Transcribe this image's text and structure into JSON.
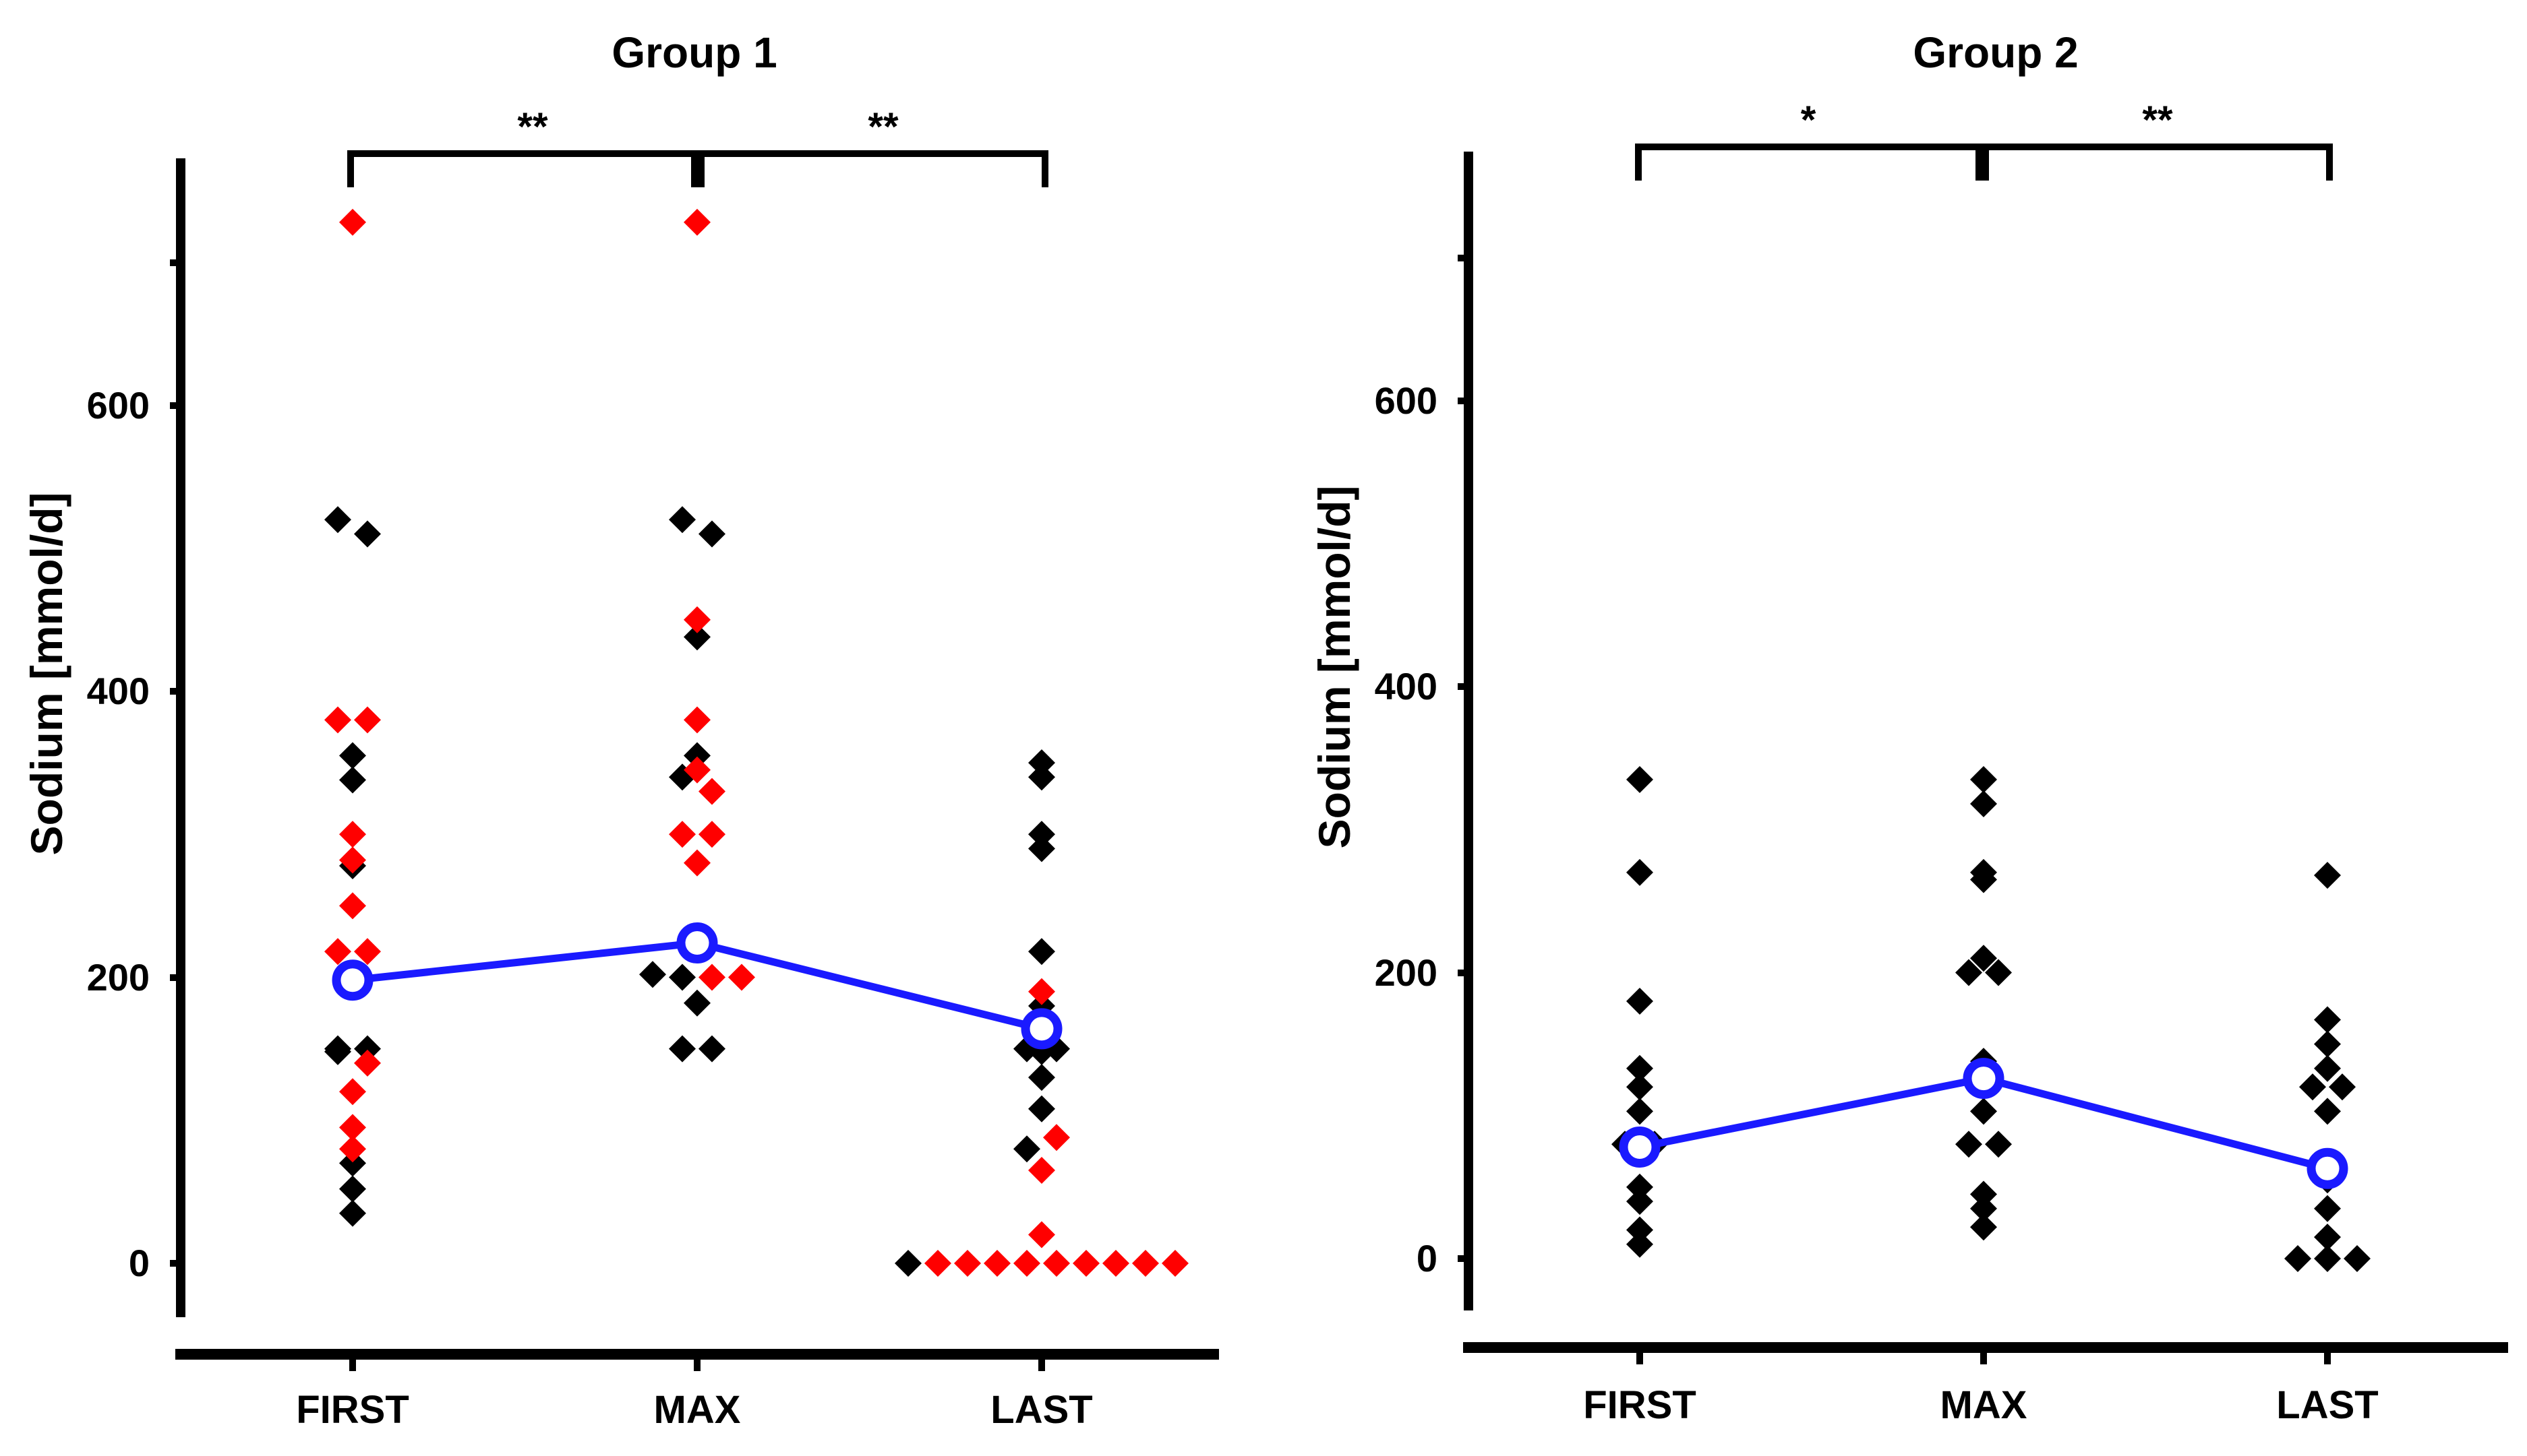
{
  "chart_data": [
    {
      "type": "scatter",
      "title": "Group 1",
      "ylabel": "Sodium [mmol/d]",
      "xlabel": "",
      "categories": [
        "FIRST",
        "MAX",
        "LAST"
      ],
      "ylim": [
        -70,
        800
      ],
      "yticks": [
        0,
        200,
        400,
        600
      ],
      "colors": {
        "black_series": "#000000",
        "red_series": "#ff0000",
        "mean": "#1a1aff"
      },
      "series": [
        {
          "color_key": "black_series",
          "points": [
            {
              "x": "FIRST",
              "y": 520
            },
            {
              "x": "FIRST",
              "y": 510
            },
            {
              "x": "FIRST",
              "y": 355
            },
            {
              "x": "FIRST",
              "y": 338
            },
            {
              "x": "FIRST",
              "y": 278
            },
            {
              "x": "FIRST",
              "y": 150
            },
            {
              "x": "FIRST",
              "y": 148
            },
            {
              "x": "FIRST",
              "y": 150
            },
            {
              "x": "FIRST",
              "y": 70
            },
            {
              "x": "FIRST",
              "y": 52
            },
            {
              "x": "FIRST",
              "y": 35
            },
            {
              "x": "MAX",
              "y": 520
            },
            {
              "x": "MAX",
              "y": 510
            },
            {
              "x": "MAX",
              "y": 438
            },
            {
              "x": "MAX",
              "y": 355
            },
            {
              "x": "MAX",
              "y": 340
            },
            {
              "x": "MAX",
              "y": 202
            },
            {
              "x": "MAX",
              "y": 200
            },
            {
              "x": "MAX",
              "y": 182
            },
            {
              "x": "MAX",
              "y": 150
            },
            {
              "x": "MAX",
              "y": 150
            },
            {
              "x": "LAST",
              "y": 350
            },
            {
              "x": "LAST",
              "y": 340
            },
            {
              "x": "LAST",
              "y": 300
            },
            {
              "x": "LAST",
              "y": 290
            },
            {
              "x": "LAST",
              "y": 218
            },
            {
              "x": "LAST",
              "y": 180
            },
            {
              "x": "LAST",
              "y": 150
            },
            {
              "x": "LAST",
              "y": 148
            },
            {
              "x": "LAST",
              "y": 150
            },
            {
              "x": "LAST",
              "y": 130
            },
            {
              "x": "LAST",
              "y": 108
            },
            {
              "x": "LAST",
              "y": 80
            },
            {
              "x": "LAST",
              "y": 0
            }
          ]
        },
        {
          "color_key": "red_series",
          "points": [
            {
              "x": "FIRST",
              "y": 728
            },
            {
              "x": "FIRST",
              "y": 380
            },
            {
              "x": "FIRST",
              "y": 380
            },
            {
              "x": "FIRST",
              "y": 300
            },
            {
              "x": "FIRST",
              "y": 282
            },
            {
              "x": "FIRST",
              "y": 250
            },
            {
              "x": "FIRST",
              "y": 218
            },
            {
              "x": "FIRST",
              "y": 218
            },
            {
              "x": "FIRST",
              "y": 200
            },
            {
              "x": "FIRST",
              "y": 140
            },
            {
              "x": "FIRST",
              "y": 120
            },
            {
              "x": "FIRST",
              "y": 95
            },
            {
              "x": "FIRST",
              "y": 80
            },
            {
              "x": "MAX",
              "y": 728
            },
            {
              "x": "MAX",
              "y": 450
            },
            {
              "x": "MAX",
              "y": 380
            },
            {
              "x": "MAX",
              "y": 345
            },
            {
              "x": "MAX",
              "y": 330
            },
            {
              "x": "MAX",
              "y": 300
            },
            {
              "x": "MAX",
              "y": 300
            },
            {
              "x": "MAX",
              "y": 280
            },
            {
              "x": "MAX",
              "y": 200
            },
            {
              "x": "MAX",
              "y": 200
            },
            {
              "x": "LAST",
              "y": 190
            },
            {
              "x": "LAST",
              "y": 88
            },
            {
              "x": "LAST",
              "y": 65
            },
            {
              "x": "LAST",
              "y": 20
            },
            {
              "x": "LAST",
              "y": 0
            },
            {
              "x": "LAST",
              "y": 0
            },
            {
              "x": "LAST",
              "y": 0
            },
            {
              "x": "LAST",
              "y": 0
            },
            {
              "x": "LAST",
              "y": 0
            },
            {
              "x": "LAST",
              "y": 0
            },
            {
              "x": "LAST",
              "y": 0
            },
            {
              "x": "LAST",
              "y": 0
            },
            {
              "x": "LAST",
              "y": 0
            }
          ]
        }
      ],
      "mean_line": {
        "color_key": "mean",
        "categories": [
          "FIRST",
          "MAX",
          "LAST"
        ],
        "values": [
          198,
          224,
          164
        ]
      },
      "annotations": [
        {
          "from": "FIRST",
          "to": "MAX",
          "text": "**"
        },
        {
          "from": "MAX",
          "to": "LAST",
          "text": "**"
        }
      ]
    },
    {
      "type": "scatter",
      "title": "Group 2",
      "ylabel": "Sodium [mmol/d]",
      "xlabel": "",
      "categories": [
        "FIRST",
        "MAX",
        "LAST"
      ],
      "ylim": [
        -70,
        800
      ],
      "yticks": [
        0,
        200,
        400,
        600
      ],
      "colors": {
        "black_series": "#000000",
        "mean": "#1a1aff"
      },
      "series": [
        {
          "color_key": "black_series",
          "points": [
            {
              "x": "FIRST",
              "y": 335
            },
            {
              "x": "FIRST",
              "y": 270
            },
            {
              "x": "FIRST",
              "y": 180
            },
            {
              "x": "FIRST",
              "y": 133
            },
            {
              "x": "FIRST",
              "y": 120
            },
            {
              "x": "FIRST",
              "y": 103
            },
            {
              "x": "FIRST",
              "y": 80
            },
            {
              "x": "FIRST",
              "y": 80
            },
            {
              "x": "FIRST",
              "y": 50
            },
            {
              "x": "FIRST",
              "y": 40
            },
            {
              "x": "FIRST",
              "y": 20
            },
            {
              "x": "FIRST",
              "y": 10
            },
            {
              "x": "MAX",
              "y": 335
            },
            {
              "x": "MAX",
              "y": 318
            },
            {
              "x": "MAX",
              "y": 270
            },
            {
              "x": "MAX",
              "y": 265
            },
            {
              "x": "MAX",
              "y": 210
            },
            {
              "x": "MAX",
              "y": 200
            },
            {
              "x": "MAX",
              "y": 200
            },
            {
              "x": "MAX",
              "y": 138
            },
            {
              "x": "MAX",
              "y": 103
            },
            {
              "x": "MAX",
              "y": 80
            },
            {
              "x": "MAX",
              "y": 80
            },
            {
              "x": "MAX",
              "y": 45
            },
            {
              "x": "MAX",
              "y": 35
            },
            {
              "x": "MAX",
              "y": 22
            },
            {
              "x": "LAST",
              "y": 268
            },
            {
              "x": "LAST",
              "y": 167
            },
            {
              "x": "LAST",
              "y": 150
            },
            {
              "x": "LAST",
              "y": 133
            },
            {
              "x": "LAST",
              "y": 120
            },
            {
              "x": "LAST",
              "y": 120
            },
            {
              "x": "LAST",
              "y": 103
            },
            {
              "x": "LAST",
              "y": 55
            },
            {
              "x": "LAST",
              "y": 35
            },
            {
              "x": "LAST",
              "y": 15
            },
            {
              "x": "LAST",
              "y": 0
            },
            {
              "x": "LAST",
              "y": 0
            },
            {
              "x": "LAST",
              "y": 0
            }
          ]
        }
      ],
      "mean_line": {
        "color_key": "mean",
        "categories": [
          "FIRST",
          "MAX",
          "LAST"
        ],
        "values": [
          78,
          126,
          63
        ]
      },
      "annotations": [
        {
          "from": "FIRST",
          "to": "MAX",
          "text": "*"
        },
        {
          "from": "MAX",
          "to": "LAST",
          "text": "**"
        }
      ]
    }
  ]
}
